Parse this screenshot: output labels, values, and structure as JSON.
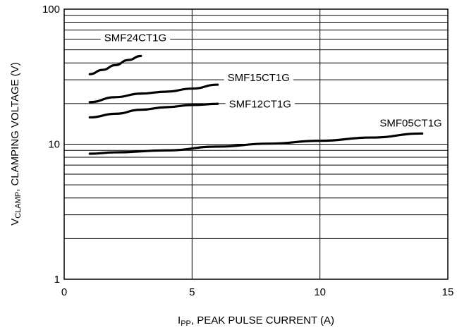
{
  "chart_data": {
    "type": "line",
    "title": "",
    "x_axis": {
      "label_main": "I",
      "label_sub": "PP",
      "label_rest": ", PEAK PULSE CURRENT (A)",
      "range": [
        0,
        15
      ],
      "ticks": [
        0,
        5,
        10,
        15
      ],
      "tick_labels": [
        "0",
        "5",
        "10",
        "15"
      ],
      "major_gridlines": [
        5,
        10
      ]
    },
    "y_axis": {
      "label_main": "V",
      "label_sub": "CLAMP",
      "label_rest": ", CLAMPING VOLTAGE (V)",
      "scale": "log",
      "range": [
        1,
        100
      ],
      "ticks": [
        1,
        10,
        100
      ],
      "tick_labels": [
        "1",
        "10",
        "100"
      ],
      "gridlines": [
        2,
        3,
        4,
        5,
        6,
        7,
        8,
        9,
        10,
        20,
        30,
        40,
        50,
        60,
        70,
        80,
        90
      ]
    },
    "grid": true,
    "series": [
      {
        "name": "SMF24CT1G",
        "x": [
          1,
          1.5,
          2,
          2.5,
          3
        ],
        "y": [
          33,
          35.5,
          38.5,
          42,
          45
        ]
      },
      {
        "name": "SMF15CT1G",
        "x": [
          1,
          2,
          3,
          4,
          5,
          6
        ],
        "y": [
          20.5,
          22.3,
          23.7,
          24.5,
          25.8,
          27.6
        ]
      },
      {
        "name": "SMF12CT1G",
        "x": [
          1,
          2,
          3,
          4,
          5,
          6
        ],
        "y": [
          15.8,
          16.8,
          18,
          18.8,
          19.5,
          19.9
        ]
      },
      {
        "name": "SMF05CT1G",
        "x": [
          1,
          2,
          4,
          6,
          8,
          10,
          12,
          14
        ],
        "y": [
          8.5,
          8.7,
          9.0,
          9.6,
          10.1,
          10.6,
          11.2,
          12.0
        ]
      }
    ]
  }
}
